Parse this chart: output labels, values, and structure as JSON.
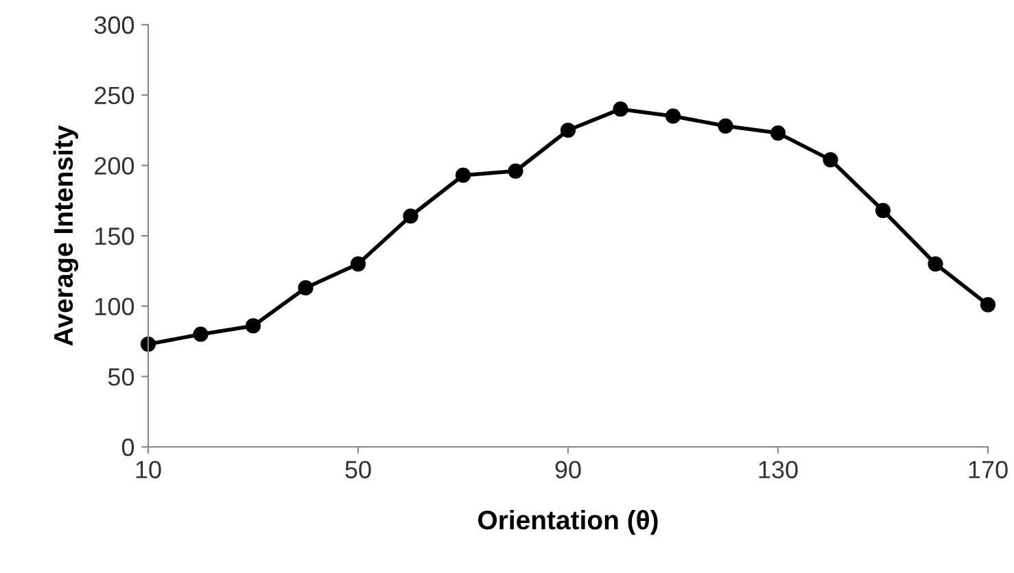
{
  "chart_data": {
    "type": "line",
    "xlabel": "Orientation (θ)",
    "ylabel": "Average Intensity",
    "x": [
      10,
      20,
      30,
      40,
      50,
      60,
      70,
      80,
      90,
      100,
      110,
      120,
      130,
      140,
      150,
      160,
      170
    ],
    "series": [
      {
        "color": "#000000",
        "values": [
          73,
          80,
          86,
          113,
          130,
          164,
          193,
          196,
          225,
          240,
          235,
          228,
          223,
          204,
          168,
          130,
          101
        ]
      }
    ],
    "xlim": [
      10,
      170
    ],
    "xticks": [
      10,
      50,
      90,
      130,
      170
    ],
    "ylim": [
      0,
      300
    ],
    "yticks": [
      0,
      50,
      100,
      150,
      200,
      250,
      300
    ],
    "grid": false,
    "legend": false,
    "marker": "circle",
    "line_style": "solid"
  }
}
